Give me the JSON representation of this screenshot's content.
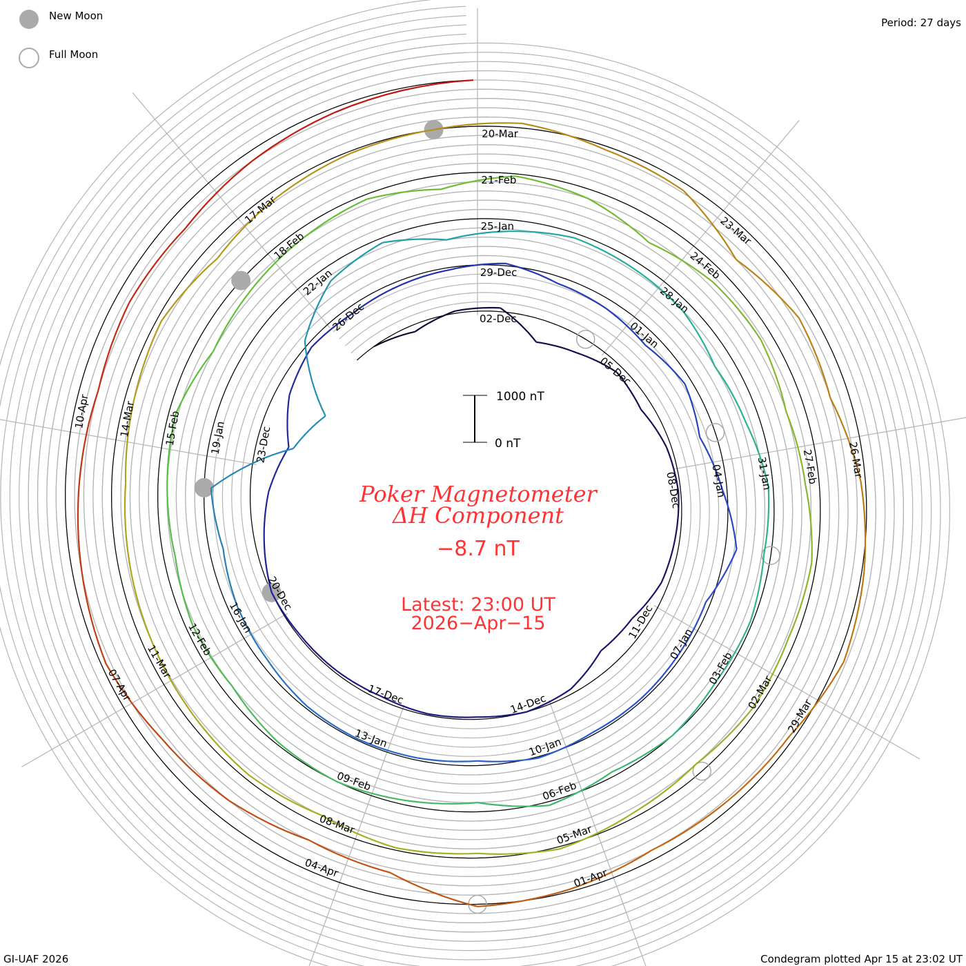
{
  "legend": {
    "new_moon": "New Moon",
    "full_moon": "Full Moon"
  },
  "period_label": "Period: 27 days",
  "credit": "GI-UAF 2026",
  "plotted": "Condegram plotted Apr 15 at 23:02 UT",
  "scale": {
    "top_label": "1000 nT",
    "bottom_label": "0 nT"
  },
  "center": {
    "title_line1": "Poker Magnetometer",
    "title_line2": "ΔH Component",
    "current_value": "−8.7 nT",
    "latest": "Latest: 23:00 UT",
    "latest_date": "2026−Apr−15"
  },
  "chart_data": {
    "type": "line",
    "subtype": "condegram-spiral",
    "title": "Poker Magnetometer ΔH Component",
    "period_days": 27,
    "units": "nT",
    "start_date": "2025-11-29",
    "end": "2026-04-15T23:00Z",
    "reference_top": "2026-03-20",
    "sample": "daily",
    "values": [
      0,
      -150,
      50,
      80,
      -500,
      -350,
      -150,
      -250,
      -100,
      -50,
      -100,
      -150,
      -350,
      -400,
      -100,
      0,
      -50,
      -30,
      -80,
      -50,
      -40,
      0,
      -200,
      -400,
      -700,
      -300,
      -100,
      -150,
      -100,
      -50,
      50,
      -150,
      -200,
      -300,
      -150,
      -350,
      -100,
      250,
      -100,
      -80,
      -50,
      -50,
      30,
      -100,
      -50,
      -30,
      -50,
      -150,
      -200,
      -300,
      -150,
      -1800,
      -2200,
      -900,
      -300,
      -100,
      -400,
      -250,
      -100,
      -150,
      -200,
      -400,
      -300,
      -100,
      -150,
      -50,
      -80,
      0,
      -100,
      80,
      -200,
      -100,
      0,
      -50,
      -200,
      -150,
      -250,
      -200,
      -150,
      -400,
      -300,
      -200,
      -100,
      -300,
      -50,
      -200,
      -500,
      -300,
      -250,
      -400,
      -300,
      -100,
      -150,
      -100,
      -200,
      -100,
      50,
      -100,
      -50,
      -200,
      -100,
      -150,
      -200,
      -250,
      -300,
      -200,
      -100,
      -300,
      -150,
      -50,
      0,
      100,
      -80,
      -150,
      -600,
      -300,
      -400,
      -100,
      50,
      150,
      -100,
      -150,
      -200,
      -50,
      50,
      -500,
      -600,
      -400,
      -300,
      -100,
      -200,
      -300,
      -400,
      -300,
      -350,
      -200,
      -100,
      0
    ],
    "date_labels": [
      "02-Dec",
      "05-Dec",
      "08-Dec",
      "11-Dec",
      "14-Dec",
      "17-Dec",
      "20-Dec",
      "23-Dec",
      "26-Dec",
      "29-Dec",
      "01-Jan",
      "04-Jan",
      "07-Jan",
      "10-Jan",
      "13-Jan",
      "16-Jan",
      "19-Jan",
      "22-Jan",
      "25-Jan",
      "28-Jan",
      "31-Jan",
      "03-Feb",
      "06-Feb",
      "09-Feb",
      "12-Feb",
      "15-Feb",
      "18-Feb",
      "21-Feb",
      "24-Feb",
      "27-Feb",
      "02-Mar",
      "05-Mar",
      "08-Mar",
      "11-Mar",
      "14-Mar",
      "17-Mar",
      "20-Mar",
      "23-Mar",
      "26-Mar",
      "29-Mar",
      "01-Apr",
      "04-Apr",
      "07-Apr",
      "10-Apr"
    ],
    "new_moons": [
      "2025-12-20",
      "2026-01-18",
      "2026-02-17",
      "2026-03-19"
    ],
    "full_moons": [
      "2025-12-04",
      "2026-01-03",
      "2026-02-01",
      "2026-03-03",
      "2026-04-02"
    ],
    "scale_bar_nT": 1000,
    "grid_step_nT": 200,
    "color_stops": [
      "#120a30",
      "#1c1c8c",
      "#2a4fd0",
      "#20b0a0",
      "#5cbf3c",
      "#a9b020",
      "#c07812",
      "#c01010"
    ],
    "moon_color": "#aaaaaa",
    "grid_color": "#b4b4b4",
    "text_color": "#ff3333"
  }
}
